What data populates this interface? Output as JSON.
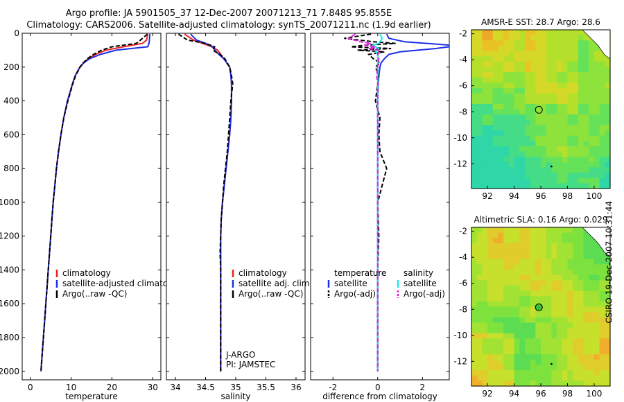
{
  "header": {
    "line1": "Argo profile: JA 5901505_37 12-Dec-2007 20071213_71 7.848S 95.855E",
    "line2": "Climatology: CARS2006. Satellite-adjusted climatology: synTS_20071211.nc (1.9d earlier)"
  },
  "side_label": "CSIRO 19-Dec-2007 10:31:44",
  "colors": {
    "climatology": "#e8231e",
    "satellite": "#1c2ee6",
    "argo": "#000000",
    "salinity_satellite": "#22e6e6",
    "salinity_argo": "#e020e0"
  },
  "chart_data": [
    {
      "type": "line",
      "xlabel": "temperature",
      "xlim": [
        -2,
        32
      ],
      "ylim": [
        2050,
        0
      ],
      "xticks": [
        0,
        10,
        20,
        30
      ],
      "yticks": [
        0,
        200,
        400,
        600,
        800,
        1000,
        1200,
        1400,
        1600,
        1800,
        2000
      ],
      "depth": [
        5,
        40,
        60,
        80,
        100,
        125,
        150,
        175,
        200,
        250,
        300,
        400,
        500,
        600,
        700,
        800,
        900,
        1000,
        1100,
        1200,
        1300,
        1400,
        1500,
        1600,
        1700,
        1800,
        1900,
        2000
      ],
      "legend": [
        "climatology",
        "satellite-adjusted climatology",
        "Argo(..raw -QC)"
      ],
      "series": [
        {
          "name": "climatology",
          "values": [
            28.8,
            28.5,
            27.5,
            22.8,
            18.5,
            16,
            14.2,
            13,
            12.1,
            11,
            10.3,
            9.1,
            8.2,
            7.5,
            6.9,
            6.4,
            6,
            5.6,
            5.3,
            5,
            4.7,
            4.4,
            4.1,
            3.8,
            3.5,
            3.2,
            2.9,
            2.6
          ]
        },
        {
          "name": "satellite-adjusted climatology",
          "values": [
            29.3,
            29.2,
            29.1,
            28.8,
            21,
            17.2,
            14.6,
            13.1,
            12.2,
            11,
            10.3,
            9.1,
            8.2,
            7.5,
            6.9,
            6.4,
            6,
            5.6,
            5.3,
            5,
            4.7,
            4.4,
            4.1,
            3.8,
            3.5,
            3.2,
            2.9,
            2.6
          ]
        },
        {
          "name": "Argo(..raw -QC)",
          "values": [
            28.7,
            27,
            26,
            20,
            17.5,
            15.5,
            14,
            13,
            12.2,
            11.1,
            10.4,
            9.2,
            8.2,
            7.5,
            6.9,
            6.4,
            6,
            5.6,
            5.3,
            5,
            4.7,
            4.4,
            4.1,
            3.8,
            3.5,
            3.2,
            2.9,
            2.6
          ]
        }
      ]
    },
    {
      "type": "line",
      "xlabel": "salinity",
      "xlim": [
        33.85,
        36.15
      ],
      "ylim": [
        2050,
        0
      ],
      "xticks": [
        34,
        34.5,
        35,
        35.5,
        36
      ],
      "yticks": [
        0,
        200,
        400,
        600,
        800,
        1000,
        1200,
        1400,
        1600,
        1800,
        2000
      ],
      "depth": [
        5,
        40,
        60,
        80,
        100,
        125,
        150,
        175,
        200,
        250,
        300,
        400,
        500,
        600,
        700,
        800,
        900,
        1000,
        1100,
        1200,
        1300,
        1400,
        1500,
        1600,
        1700,
        1800,
        1900,
        2000
      ],
      "legend": [
        "climatology",
        "satellite adj. clim.",
        "Argo(..raw -QC)"
      ],
      "annotations": [
        "J-ARGO",
        "PI: JAMSTEC"
      ],
      "series": [
        {
          "name": "climatology",
          "values": [
            34.15,
            34.3,
            34.45,
            34.6,
            34.7,
            34.75,
            34.8,
            34.85,
            34.9,
            34.92,
            34.93,
            34.93,
            34.92,
            34.9,
            34.87,
            34.84,
            34.81,
            34.78,
            34.76,
            34.75,
            34.75,
            34.75,
            34.75,
            34.75,
            34.75,
            34.75,
            34.75,
            34.75
          ]
        },
        {
          "name": "satellite adj. clim.",
          "values": [
            34.25,
            34.35,
            34.5,
            34.62,
            34.65,
            34.72,
            34.8,
            34.85,
            34.9,
            34.92,
            34.93,
            34.93,
            34.92,
            34.9,
            34.87,
            34.84,
            34.81,
            34.78,
            34.76,
            34.75,
            34.75,
            34.75,
            34.75,
            34.75,
            34.75,
            34.75,
            34.75,
            34.75
          ]
        },
        {
          "name": "Argo(..raw -QC)",
          "values": [
            34.05,
            34.2,
            34.5,
            34.65,
            34.62,
            34.74,
            34.82,
            34.86,
            34.9,
            34.93,
            34.95,
            34.92,
            34.9,
            34.88,
            34.86,
            34.83,
            34.8,
            34.78,
            34.76,
            34.75,
            34.74,
            34.75,
            34.75,
            34.75,
            34.75,
            34.75,
            34.75,
            34.75
          ]
        }
      ]
    },
    {
      "type": "line",
      "xlabel": "difference from climatology",
      "xlim": [
        -3,
        3.2
      ],
      "ylim": [
        2050,
        0
      ],
      "xticks": [
        -2,
        0,
        2
      ],
      "yticks": [
        0,
        200,
        400,
        600,
        800,
        1000,
        1200,
        1400,
        1600,
        1800,
        2000
      ],
      "depth": [
        5,
        30,
        50,
        60,
        70,
        80,
        90,
        100,
        110,
        125,
        150,
        175,
        200,
        250,
        300,
        400,
        500,
        600,
        700,
        800,
        900,
        1000,
        1200,
        1400,
        1600,
        1800,
        2000
      ],
      "legend_titles": [
        "temperature",
        "salinity"
      ],
      "legend": [
        "satellite",
        "Argo(-adj)",
        "satellite",
        "Argo(-adj)"
      ],
      "series": [
        {
          "name": "temperature satellite",
          "values": [
            0.4,
            0.5,
            1.2,
            2.2,
            3.2,
            3.2,
            2.6,
            1.8,
            1.0,
            0.5,
            0.3,
            0.15,
            0.1,
            0.05,
            0.02,
            0.0,
            0.0,
            0.0,
            0.0,
            0.0,
            0.0,
            0.0,
            0.0,
            0.0,
            0.0,
            0.0,
            0.0
          ]
        },
        {
          "name": "temperature Argo(-adj)",
          "values": [
            -0.3,
            -1.5,
            -0.2,
            0.8,
            -0.5,
            -1.2,
            0.6,
            -0.9,
            0.3,
            -0.4,
            -0.2,
            0.1,
            -0.1,
            0.05,
            0.0,
            -0.1,
            0.1,
            0.05,
            0.1,
            0.4,
            0.2,
            0.0,
            0.05,
            0.0,
            0.0,
            0.0,
            0.0
          ]
        },
        {
          "name": "salinity satellite",
          "values": [
            0.1,
            0.2,
            0.1,
            0.05,
            -0.2,
            -0.1,
            0.05,
            0.0,
            -0.1,
            0.0,
            0.0,
            0.0,
            0.0,
            0.0,
            0.0,
            0.0,
            0.0,
            0.0,
            0.0,
            0.0,
            0.0,
            0.0,
            0.0,
            0.0,
            0.0,
            0.0,
            0.0
          ]
        },
        {
          "name": "salinity Argo(-adj)",
          "values": [
            -1.0,
            -1.3,
            -0.8,
            -0.3,
            -0.6,
            -0.1,
            -0.4,
            0.05,
            0.1,
            0.0,
            0.05,
            0.0,
            0.0,
            -0.05,
            0.0,
            0.0,
            0.0,
            0.0,
            0.0,
            0.0,
            0.0,
            0.0,
            0.0,
            0.0,
            0.0,
            0.0,
            0.0
          ]
        }
      ]
    },
    {
      "type": "heatmap",
      "title": "AMSR-E SST: 28.7 Argo: 28.6",
      "xlim": [
        90.8,
        101.2
      ],
      "ylim": [
        -13.9,
        -1.7
      ],
      "xticks": [
        92,
        94,
        96,
        98,
        100
      ],
      "yticks": [
        -2,
        -4,
        -6,
        -8,
        -10,
        -12
      ],
      "argo_position": [
        95.855,
        -7.848
      ]
    },
    {
      "type": "heatmap",
      "title": "Altimetric SLA: 0.16 Argo: 0.029",
      "xlim": [
        90.8,
        101.2
      ],
      "ylim": [
        -13.9,
        -1.7
      ],
      "xticks": [
        92,
        94,
        96,
        98,
        100
      ],
      "yticks": [
        -2,
        -4,
        -6,
        -8,
        -10,
        -12
      ],
      "argo_position": [
        95.855,
        -7.848
      ]
    }
  ]
}
